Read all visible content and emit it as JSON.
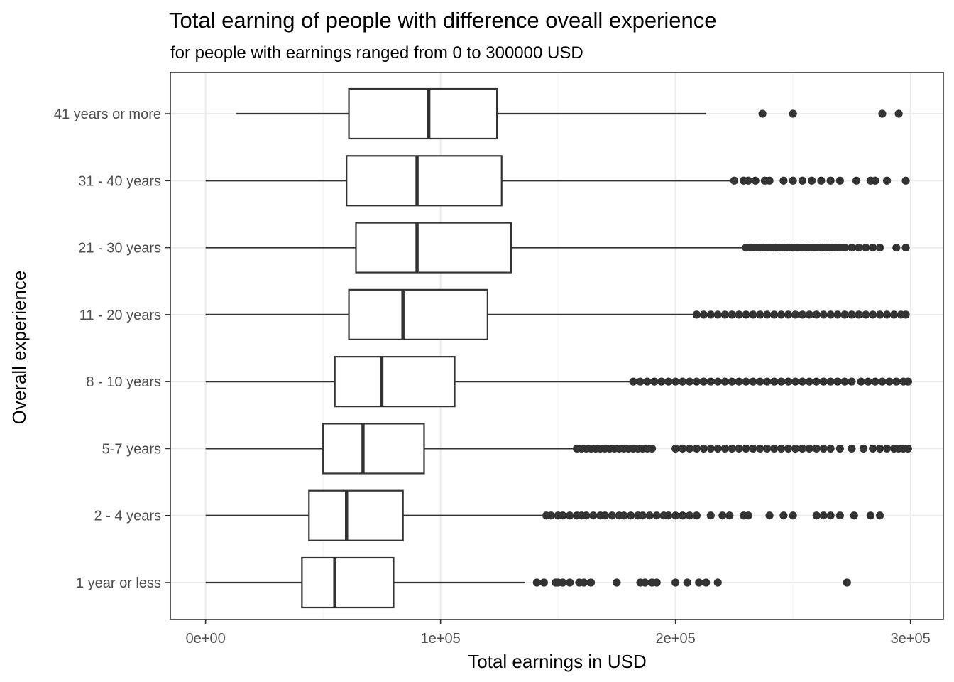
{
  "chart_data": {
    "type": "boxplot",
    "orientation": "horizontal",
    "title": "Total earning of people with difference oveall experience",
    "subtitle": "for people with earnings ranged from 0 to 300000 USD",
    "xlabel": "Total earnings in USD",
    "ylabel": "Overall experience",
    "xlim": [
      -15000,
      314000
    ],
    "x_ticks": [
      0,
      100000,
      200000,
      300000
    ],
    "x_tick_labels": [
      "0e+00",
      "1e+05",
      "2e+05",
      "3e+05"
    ],
    "grid": true,
    "theme": "bw",
    "colors": {
      "box_stroke": "#333333",
      "point": "#333333",
      "grid_major": "#ebebeb",
      "grid_minor": "#f4f4f4",
      "panel_border": "#333333"
    },
    "categories": [
      "1 year or less",
      "2 - 4 years",
      "5-7 years",
      "8 - 10 years",
      "11 - 20 years",
      "21 - 30 years",
      "31 - 40 years",
      "41 years or more"
    ],
    "boxes": [
      {
        "label": "1 year or less",
        "lower_whisker": 0,
        "q1": 41000,
        "median": 55000,
        "q3": 80000,
        "upper_whisker": 136000,
        "outliers": [
          141000,
          144000,
          149000,
          150000,
          152000,
          155000,
          159000,
          161000,
          164000,
          175000,
          185000,
          187000,
          190000,
          192000,
          200000,
          205000,
          210000,
          213000,
          218000,
          273000
        ]
      },
      {
        "label": "2 - 4 years",
        "lower_whisker": 0,
        "q1": 44000,
        "median": 60000,
        "q3": 84000,
        "upper_whisker": 143000,
        "outliers": [
          145000,
          147000,
          150000,
          152000,
          155000,
          158000,
          160000,
          162000,
          165000,
          168000,
          170000,
          173000,
          176000,
          178000,
          181000,
          184000,
          186000,
          189000,
          192000,
          195000,
          197000,
          200000,
          203000,
          206000,
          209000,
          215000,
          220000,
          223000,
          229000,
          231000,
          240000,
          246000,
          250000,
          260000,
          263000,
          266000,
          270000,
          276000,
          283000,
          287000
        ]
      },
      {
        "label": "5-7 years",
        "lower_whisker": 0,
        "q1": 50000,
        "median": 67000,
        "q3": 93000,
        "upper_whisker": 157000,
        "outliers": [
          158000,
          160000,
          162000,
          164000,
          166000,
          168000,
          170000,
          172000,
          174000,
          176000,
          178000,
          180000,
          182000,
          184000,
          186000,
          188000,
          190000,
          200000,
          203000,
          206000,
          209000,
          212000,
          215000,
          218000,
          221000,
          224000,
          227000,
          230000,
          233000,
          236000,
          239000,
          242000,
          245000,
          248000,
          251000,
          254000,
          257000,
          260000,
          263000,
          266000,
          270000,
          275000,
          280000,
          284000,
          287000,
          290000,
          293000,
          295000,
          297000,
          299000
        ]
      },
      {
        "label": "8 - 10 years",
        "lower_whisker": 0,
        "q1": 55000,
        "median": 75000,
        "q3": 106000,
        "upper_whisker": 181000,
        "outliers": [
          182000,
          185000,
          188000,
          191000,
          194000,
          197000,
          200000,
          203000,
          206000,
          209000,
          212000,
          215000,
          218000,
          221000,
          224000,
          227000,
          230000,
          233000,
          236000,
          239000,
          242000,
          245000,
          248000,
          251000,
          254000,
          257000,
          260000,
          263000,
          266000,
          269000,
          272000,
          275000,
          279000,
          282000,
          285000,
          288000,
          291000,
          294000,
          297000,
          299000
        ]
      },
      {
        "label": "11 - 20 years",
        "lower_whisker": 0,
        "q1": 61000,
        "median": 84000,
        "q3": 120000,
        "upper_whisker": 208000,
        "outliers": [
          209000,
          212000,
          215000,
          218000,
          221000,
          224000,
          227000,
          230000,
          233000,
          236000,
          239000,
          242000,
          245000,
          248000,
          251000,
          254000,
          257000,
          260000,
          263000,
          266000,
          269000,
          272000,
          275000,
          278000,
          281000,
          284000,
          287000,
          290000,
          293000,
          296000,
          298000
        ]
      },
      {
        "label": "21 - 30 years",
        "lower_whisker": 0,
        "q1": 64000,
        "median": 90000,
        "q3": 130000,
        "upper_whisker": 229000,
        "outliers": [
          230000,
          232000,
          234000,
          236000,
          238000,
          240000,
          242000,
          244000,
          246000,
          248000,
          250000,
          252000,
          254000,
          256000,
          258000,
          260000,
          262000,
          264000,
          266000,
          268000,
          270000,
          272000,
          275000,
          278000,
          281000,
          284000,
          287000,
          294000,
          298000
        ]
      },
      {
        "label": "31 - 40 years",
        "lower_whisker": 0,
        "q1": 60000,
        "median": 90000,
        "q3": 126000,
        "upper_whisker": 224000,
        "outliers": [
          225000,
          229000,
          231000,
          234000,
          238000,
          240000,
          246000,
          250000,
          254000,
          258000,
          262000,
          266000,
          270000,
          277000,
          283000,
          285000,
          290000,
          298000
        ]
      },
      {
        "label": "41 years or more",
        "lower_whisker": 13000,
        "q1": 61000,
        "median": 95000,
        "q3": 124000,
        "upper_whisker": 213000,
        "outliers": [
          237000,
          250000,
          288000,
          295000
        ]
      }
    ]
  }
}
